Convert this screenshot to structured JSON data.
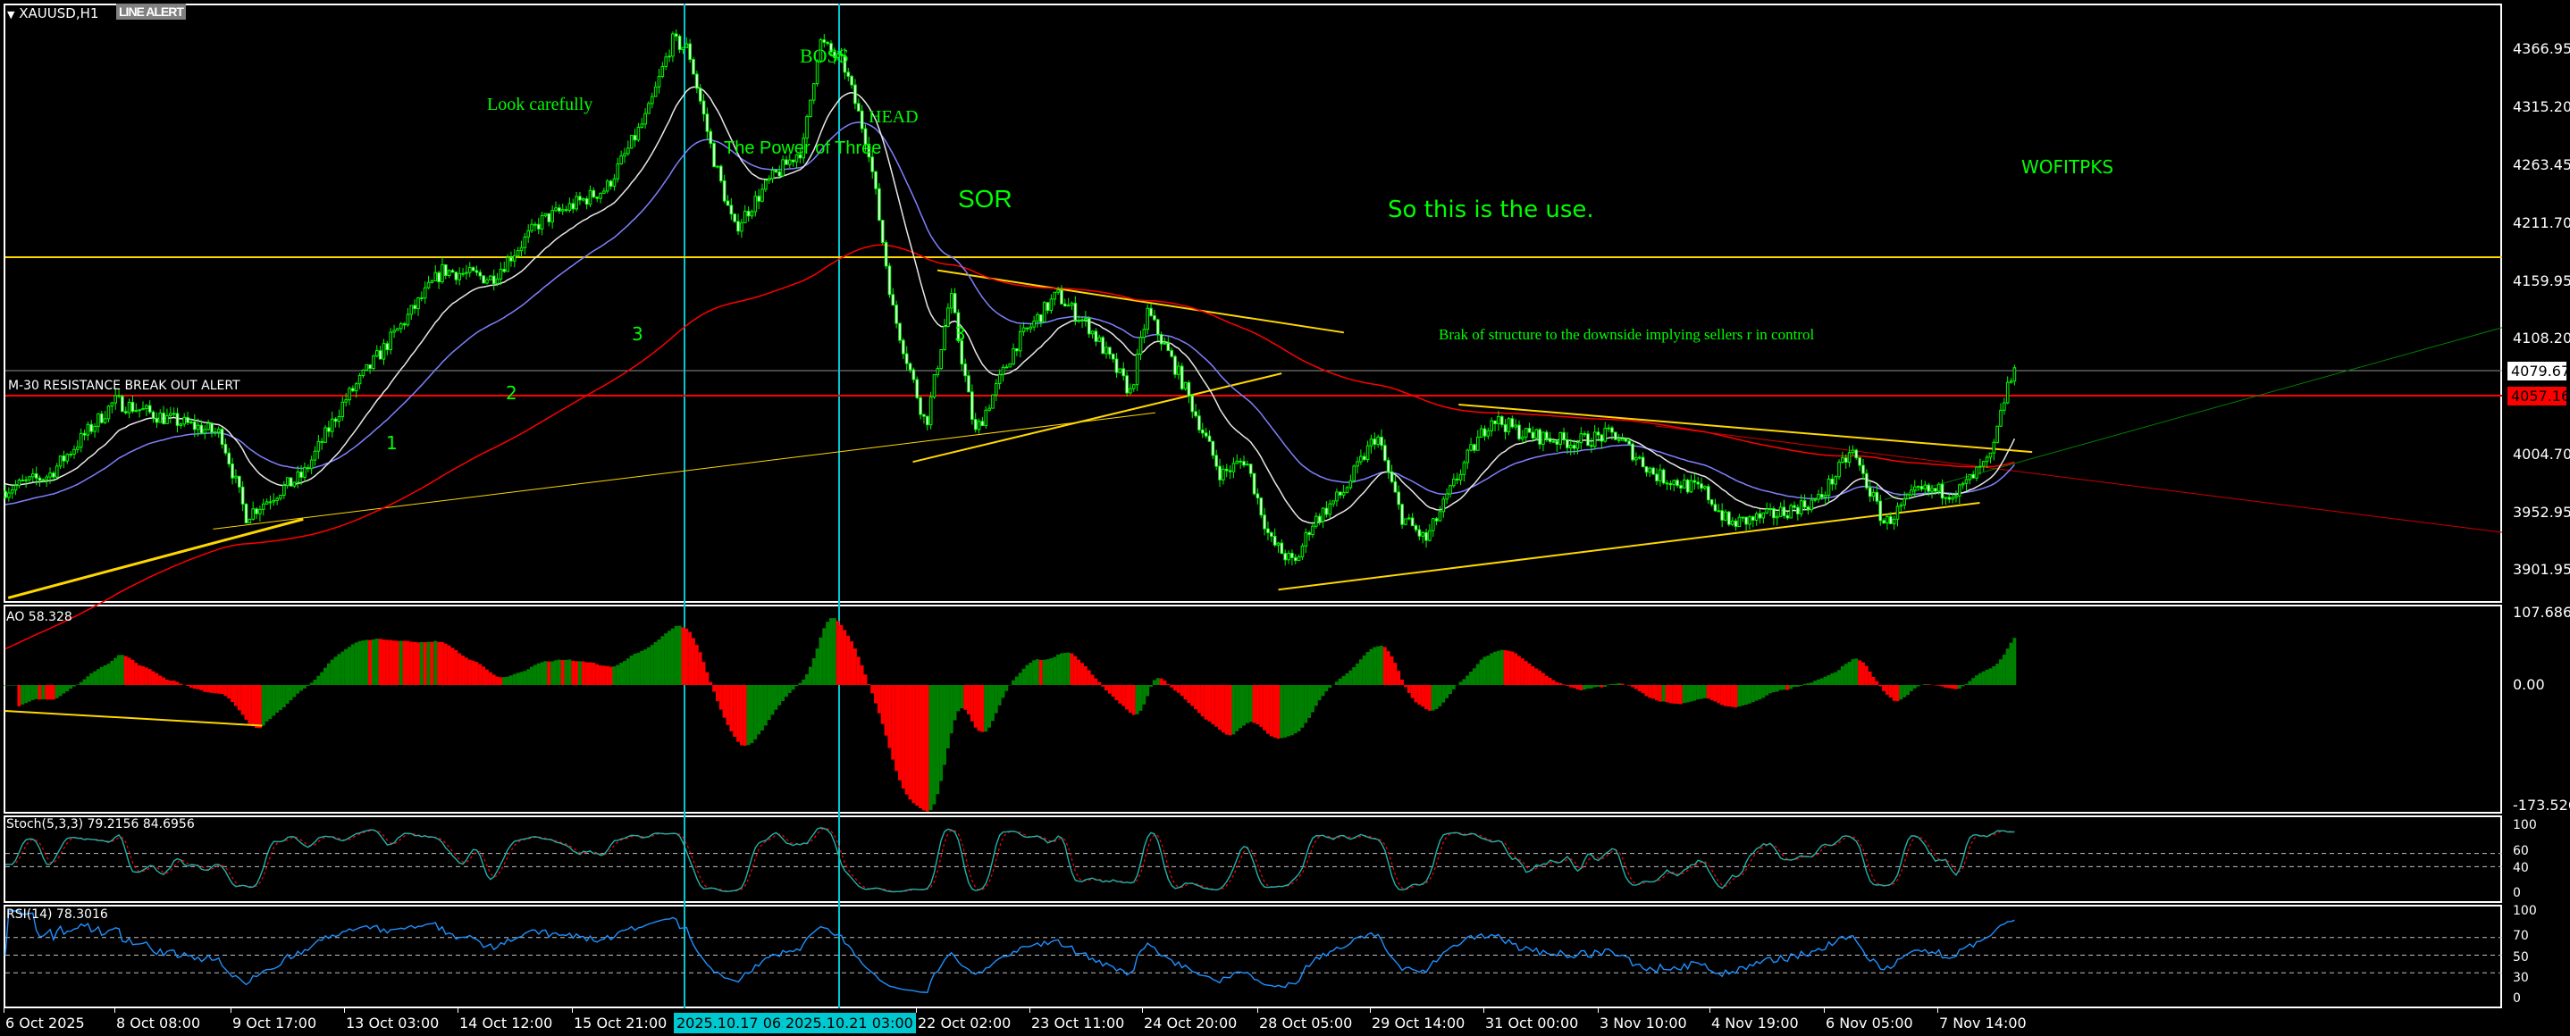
{
  "header": {
    "symbol": "XAUUSD,H1",
    "line_alert_button": "LINE ALERT"
  },
  "colors": {
    "background": "#000000",
    "candle": "#00ff00",
    "ma_fast": "#e8e8e8",
    "ma_mid": "#8080ff",
    "ma_slow": "#ff0000",
    "trendline": "#ffd700",
    "cursor_line": "#00c8d0",
    "ao_up": "#008000",
    "ao_down": "#ff0000",
    "stoch_main": "#20b2aa",
    "stoch_signal": "#ff0000",
    "rsi": "#1e90ff",
    "annotation": "#00ff00"
  },
  "price_axis": {
    "ticks": [
      "4366.95",
      "4315.20",
      "4263.45",
      "4211.70",
      "4159.95",
      "4108.20",
      "4004.70",
      "3952.95",
      "3901.95"
    ],
    "bid_price": "4079.67",
    "alert_price": "4057.16"
  },
  "annotations": {
    "look_carefully": "Look carefully",
    "boss": "BOSS",
    "head": "HEAD",
    "power_of_three": "The Power of Three",
    "sor": "SOR",
    "so_this": "So this is the use.",
    "wofitpks": "WOFITPKS",
    "bos_note": "Brak of structure to the downside implying sellers r in control",
    "wave_3a": "3",
    "wave_3b": "3",
    "wave_2": "2",
    "wave_1": "1",
    "resistance_alert": "M-30 RESISTANCE BREAK OUT ALERT"
  },
  "ao": {
    "label": "AO 58.328",
    "ticks": [
      "107.686",
      "0.00",
      "-173.526"
    ]
  },
  "stoch": {
    "label": "Stoch(5,3,3) 79.2156 84.6956",
    "ticks": [
      "100",
      "60",
      "40",
      "0"
    ]
  },
  "rsi": {
    "label": "RSI(14) 78.3016",
    "ticks": [
      "100",
      "70",
      "50",
      "30",
      "0"
    ]
  },
  "time_axis": {
    "labels": [
      "6 Oct 2025",
      "8 Oct 08:00",
      "9 Oct 17:00",
      "13 Oct 03:00",
      "14 Oct 12:00",
      "15 Oct 21:00",
      "22 Oct 02:00",
      "23 Oct 11:00",
      "24 Oct 20:00",
      "28 Oct 05:00",
      "29 Oct 14:00",
      "31 Oct 00:00",
      "3 Nov 10:00",
      "4 Nov 19:00",
      "6 Nov 05:00",
      "7 Nov 14:00"
    ],
    "cursor_1": "2025.10.17 06:00",
    "cursor_2": "2025.10.21 03:00"
  }
}
